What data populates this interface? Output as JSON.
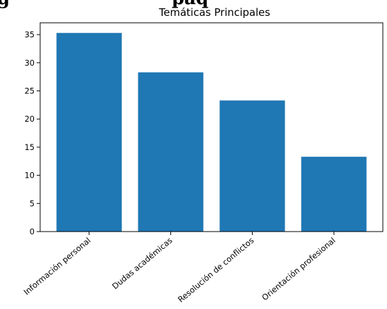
{
  "page_heading_fragment": "g",
  "page_heading_fragment_2": "paq",
  "chart_data": {
    "type": "bar",
    "title": "Temáticas Principales",
    "xlabel": "",
    "ylabel": "",
    "categories": [
      "Información personal",
      "Dudas académicas",
      "Resolución de conflictos",
      "Orientación profesional"
    ],
    "values": [
      35.3,
      28.3,
      23.3,
      13.3
    ],
    "ylim": [
      0,
      37.1
    ],
    "yticks": [
      0,
      5,
      10,
      15,
      20,
      25,
      30,
      35
    ],
    "bar_color": "#1f77b4",
    "grid": false,
    "legend": "none"
  }
}
